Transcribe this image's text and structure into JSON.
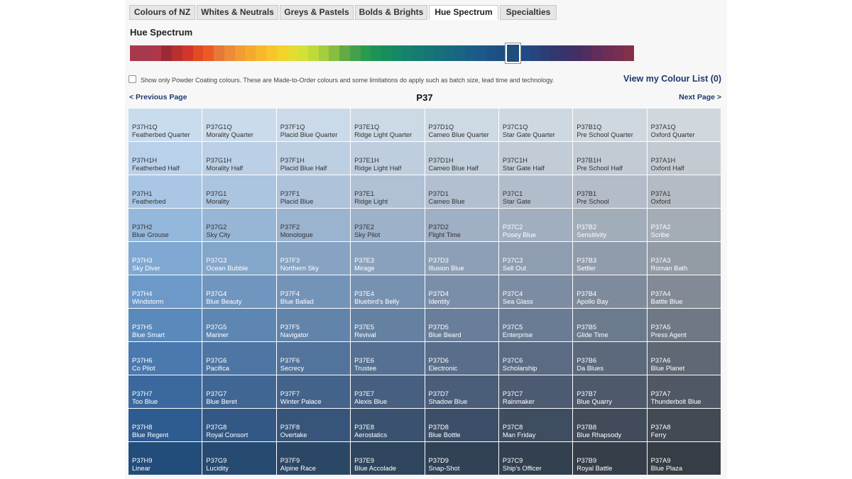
{
  "tabs": [
    {
      "label": "Colours of NZ",
      "active": false
    },
    {
      "label": "Whites & Neutrals",
      "active": false
    },
    {
      "label": "Greys & Pastels",
      "active": false
    },
    {
      "label": "Bolds & Brights",
      "active": false
    },
    {
      "label": "Hue Spectrum",
      "active": true
    },
    {
      "label": "Specialties",
      "active": false
    }
  ],
  "heading": "Hue Spectrum",
  "spectrum": {
    "selected_index": 36,
    "swatches": [
      "#a8384e",
      "#a63a4c",
      "#b0364a",
      "#9c2a34",
      "#b8302e",
      "#d2362a",
      "#e44a22",
      "#ec5a24",
      "#e87838",
      "#ee8a38",
      "#f29c32",
      "#f5aa2e",
      "#f7b82c",
      "#f6c62a",
      "#f0d42c",
      "#e6dc30",
      "#d4e036",
      "#c0da3a",
      "#a4cc3e",
      "#86be42",
      "#62aa46",
      "#44a04a",
      "#2a9a50",
      "#1c9456",
      "#188e5e",
      "#168866",
      "#16826c",
      "#167c72",
      "#167676",
      "#16707c",
      "#186a80",
      "#1a6484",
      "#1a5e88",
      "#1c5888",
      "#1c5286",
      "#1c4e82",
      "#1e4e7c",
      "#204a88",
      "#26447e",
      "#2c3e76",
      "#32386e",
      "#3a326a",
      "#442e66",
      "#522e60",
      "#602e5a",
      "#6c2e54",
      "#782e4e",
      "#843048"
    ]
  },
  "filter": {
    "checked": false,
    "label": "Show only Powder Coating colours. These are Made-to-Order colours and some limitations do apply such as batch size, lead time and technology."
  },
  "colour_list_link": "View my Colour List (0)",
  "pager": {
    "prev": "< Previous Page",
    "page": "P37",
    "next": "Next Page >"
  },
  "grid": {
    "rows": [
      [
        {
          "code": "P37H1Q",
          "name": "Featherbed Quarter",
          "bg": "#c9dcee",
          "fg": "#333333"
        },
        {
          "code": "P37G1Q",
          "name": "Morality Quarter",
          "bg": "#cadbeb",
          "fg": "#333333"
        },
        {
          "code": "P37F1Q",
          "name": "Placid Blue Quarter",
          "bg": "#cbdae8",
          "fg": "#333333"
        },
        {
          "code": "P37E1Q",
          "name": "Ridge Light Quarter",
          "bg": "#ccdae6",
          "fg": "#333333"
        },
        {
          "code": "P37D1Q",
          "name": "Cameo Blue Quarter",
          "bg": "#cdd9e3",
          "fg": "#333333"
        },
        {
          "code": "P37C1Q",
          "name": "Star Gate Quarter",
          "bg": "#ced8e1",
          "fg": "#333333"
        },
        {
          "code": "P37B1Q",
          "name": "Pre School Quarter",
          "bg": "#cfd8df",
          "fg": "#333333"
        },
        {
          "code": "P37A1Q",
          "name": "Oxford Quarter",
          "bg": "#d0d7dd",
          "fg": "#333333"
        }
      ],
      [
        {
          "code": "P37H1H",
          "name": "Featherbed Half",
          "bg": "#b9d1ea",
          "fg": "#333333"
        },
        {
          "code": "P37G1H",
          "name": "Morality Half",
          "bg": "#bbd0e6",
          "fg": "#333333"
        },
        {
          "code": "P37F1H",
          "name": "Placid Blue Half",
          "bg": "#bdcfe2",
          "fg": "#333333"
        },
        {
          "code": "P37E1H",
          "name": "Ridge Light Half",
          "bg": "#bfcedf",
          "fg": "#333333"
        },
        {
          "code": "P37D1H",
          "name": "Cameo Blue Half",
          "bg": "#c0cddb",
          "fg": "#333333"
        },
        {
          "code": "P37C1H",
          "name": "Star Gate Half",
          "bg": "#c1ccd7",
          "fg": "#333333"
        },
        {
          "code": "P37B1H",
          "name": "Pre School Half",
          "bg": "#c2cbd4",
          "fg": "#333333"
        },
        {
          "code": "P37A1H",
          "name": "Oxford Half",
          "bg": "#c4cad1",
          "fg": "#333333"
        }
      ],
      [
        {
          "code": "P37H1",
          "name": "Featherbed",
          "bg": "#a9c6e4",
          "fg": "#333333"
        },
        {
          "code": "P37G1",
          "name": "Morality",
          "bg": "#abc4df",
          "fg": "#333333"
        },
        {
          "code": "P37F1",
          "name": "Placid Blue",
          "bg": "#aec2da",
          "fg": "#333333"
        },
        {
          "code": "P37E1",
          "name": "Ridge Light",
          "bg": "#b0c0d5",
          "fg": "#333333"
        },
        {
          "code": "P37D1",
          "name": "Cameo Blue",
          "bg": "#b1bfd1",
          "fg": "#333333"
        },
        {
          "code": "P37C1",
          "name": "Star Gate",
          "bg": "#b2bdcc",
          "fg": "#333333"
        },
        {
          "code": "P37B1",
          "name": "Pre School",
          "bg": "#b3bcc8",
          "fg": "#333333"
        },
        {
          "code": "P37A1",
          "name": "Oxford",
          "bg": "#b5bbc3",
          "fg": "#333333"
        }
      ],
      [
        {
          "code": "P37H2",
          "name": "Blue Grouse",
          "bg": "#94b8dc",
          "fg": "#333333"
        },
        {
          "code": "P37G2",
          "name": "Sky City",
          "bg": "#97b6d6",
          "fg": "#333333"
        },
        {
          "code": "P37F2",
          "name": "Monologue",
          "bg": "#9ab3cf",
          "fg": "#333333"
        },
        {
          "code": "P37E2",
          "name": "Sky Pilot",
          "bg": "#9db1c9",
          "fg": "#333333"
        },
        {
          "code": "P37D2",
          "name": "Flight Time",
          "bg": "#9fafc4",
          "fg": "#333333"
        },
        {
          "code": "P37C2",
          "name": "Posey Blue",
          "bg": "#a0aebf",
          "fg": "#ffffff"
        },
        {
          "code": "P37B2",
          "name": "Sensitivity",
          "bg": "#a2adba",
          "fg": "#ffffff"
        },
        {
          "code": "P37A2",
          "name": "Scribe",
          "bg": "#a4acb5",
          "fg": "#ffffff"
        }
      ],
      [
        {
          "code": "P37H3",
          "name": "Sky Diver",
          "bg": "#7fa8d2",
          "fg": "#ffffff"
        },
        {
          "code": "P37G3",
          "name": "Ocean Bubble",
          "bg": "#83a6cb",
          "fg": "#ffffff"
        },
        {
          "code": "P37F3",
          "name": "Northern Sky",
          "bg": "#87a3c3",
          "fg": "#ffffff"
        },
        {
          "code": "P37E3",
          "name": "Mirage",
          "bg": "#8aa1bd",
          "fg": "#ffffff"
        },
        {
          "code": "P37D3",
          "name": "Illusion Blue",
          "bg": "#8c9fb6",
          "fg": "#ffffff"
        },
        {
          "code": "P37C3",
          "name": "Sell Out",
          "bg": "#8e9db1",
          "fg": "#ffffff"
        },
        {
          "code": "P37B3",
          "name": "Settler",
          "bg": "#909cab",
          "fg": "#ffffff"
        },
        {
          "code": "P37A3",
          "name": "Roman Bath",
          "bg": "#939ba5",
          "fg": "#ffffff"
        }
      ],
      [
        {
          "code": "P37H4",
          "name": "Windstorm",
          "bg": "#6c99c8",
          "fg": "#ffffff"
        },
        {
          "code": "P37G4",
          "name": "Blue Beauty",
          "bg": "#7096c0",
          "fg": "#ffffff"
        },
        {
          "code": "P37F4",
          "name": "Blue Ballad",
          "bg": "#7493b8",
          "fg": "#ffffff"
        },
        {
          "code": "P37E4",
          "name": "Bluebird's Belly",
          "bg": "#7791b0",
          "fg": "#ffffff"
        },
        {
          "code": "P37D4",
          "name": "Identity",
          "bg": "#7a8ea9",
          "fg": "#ffffff"
        },
        {
          "code": "P37C4",
          "name": "Sea Glass",
          "bg": "#7c8ca3",
          "fg": "#ffffff"
        },
        {
          "code": "P37B4",
          "name": "Apollo Bay",
          "bg": "#7e8b9d",
          "fg": "#ffffff"
        },
        {
          "code": "P37A4",
          "name": "Battle Blue",
          "bg": "#818a95",
          "fg": "#ffffff"
        }
      ],
      [
        {
          "code": "P37H5",
          "name": "Blue Smart",
          "bg": "#5a89bc",
          "fg": "#ffffff"
        },
        {
          "code": "P37G5",
          "name": "Mariner",
          "bg": "#5e86b3",
          "fg": "#ffffff"
        },
        {
          "code": "P37F5",
          "name": "Navigator",
          "bg": "#6283aa",
          "fg": "#ffffff"
        },
        {
          "code": "P37E5",
          "name": "Revival",
          "bg": "#6581a2",
          "fg": "#ffffff"
        },
        {
          "code": "P37D5",
          "name": "Blue Beard",
          "bg": "#687e9a",
          "fg": "#ffffff"
        },
        {
          "code": "P37C5",
          "name": "Enterprise",
          "bg": "#6a7c93",
          "fg": "#ffffff"
        },
        {
          "code": "P37B5",
          "name": "Glide Time",
          "bg": "#6c7a8d",
          "fg": "#ffffff"
        },
        {
          "code": "P37A5",
          "name": "Press Agent",
          "bg": "#6f7985",
          "fg": "#ffffff"
        }
      ],
      [
        {
          "code": "P37H6",
          "name": "Co Pilot",
          "bg": "#4979ae",
          "fg": "#ffffff"
        },
        {
          "code": "P37G6",
          "name": "Pacifica",
          "bg": "#4e76a4",
          "fg": "#ffffff"
        },
        {
          "code": "P37F6",
          "name": "Secrecy",
          "bg": "#52739b",
          "fg": "#ffffff"
        },
        {
          "code": "P37E6",
          "name": "Trustee",
          "bg": "#557092",
          "fg": "#ffffff"
        },
        {
          "code": "P37D6",
          "name": "Electronic",
          "bg": "#586e8a",
          "fg": "#ffffff"
        },
        {
          "code": "P37C6",
          "name": "Scholarship",
          "bg": "#5a6b83",
          "fg": "#ffffff"
        },
        {
          "code": "P37B6",
          "name": "Da Blues",
          "bg": "#5c697c",
          "fg": "#ffffff"
        },
        {
          "code": "P37A6",
          "name": "Blue Planet",
          "bg": "#5f6875",
          "fg": "#ffffff"
        }
      ],
      [
        {
          "code": "P37H7",
          "name": "Too Blue",
          "bg": "#3b699e",
          "fg": "#ffffff"
        },
        {
          "code": "P37G7",
          "name": "Blue Beret",
          "bg": "#406694",
          "fg": "#ffffff"
        },
        {
          "code": "P37F7",
          "name": "Winter Palace",
          "bg": "#44638a",
          "fg": "#ffffff"
        },
        {
          "code": "P37E7",
          "name": "Alexis Blue",
          "bg": "#476081",
          "fg": "#ffffff"
        },
        {
          "code": "P37D7",
          "name": "Shadow Blue",
          "bg": "#4a5d79",
          "fg": "#ffffff"
        },
        {
          "code": "P37C7",
          "name": "Rainmaker",
          "bg": "#4c5b72",
          "fg": "#ffffff"
        },
        {
          "code": "P37B7",
          "name": "Blue Quarry",
          "bg": "#4e596b",
          "fg": "#ffffff"
        },
        {
          "code": "P37A7",
          "name": "Thunderbolt Blue",
          "bg": "#515865",
          "fg": "#ffffff"
        }
      ],
      [
        {
          "code": "P37H8",
          "name": "Blue Regent",
          "bg": "#2e5b90",
          "fg": "#ffffff"
        },
        {
          "code": "P37G8",
          "name": "Royal Consort",
          "bg": "#335885",
          "fg": "#ffffff"
        },
        {
          "code": "P37F8",
          "name": "Overtake",
          "bg": "#37557a",
          "fg": "#ffffff"
        },
        {
          "code": "P37E8",
          "name": "Aerostatics",
          "bg": "#3a5270",
          "fg": "#ffffff"
        },
        {
          "code": "P37D8",
          "name": "Blue Bottle",
          "bg": "#3d4f68",
          "fg": "#ffffff"
        },
        {
          "code": "P37C8",
          "name": "Man Friday",
          "bg": "#3f4d61",
          "fg": "#ffffff"
        },
        {
          "code": "P37B8",
          "name": "Blue Rhapsody",
          "bg": "#414b5a",
          "fg": "#ffffff"
        },
        {
          "code": "P37A8",
          "name": "Ferry",
          "bg": "#434a54",
          "fg": "#ffffff"
        }
      ],
      [
        {
          "code": "P37H9",
          "name": "Linear",
          "bg": "#224c7a",
          "fg": "#ffffff"
        },
        {
          "code": "P37G9",
          "name": "Lucidity",
          "bg": "#274a70",
          "fg": "#ffffff"
        },
        {
          "code": "P37F9",
          "name": "Alpine Race",
          "bg": "#2b4766",
          "fg": "#ffffff"
        },
        {
          "code": "P37E9",
          "name": "Blue Accolade",
          "bg": "#2e455d",
          "fg": "#ffffff"
        },
        {
          "code": "P37D9",
          "name": "Snap-Shot",
          "bg": "#314256",
          "fg": "#ffffff"
        },
        {
          "code": "P37C9",
          "name": "Ship's Officer",
          "bg": "#33404f",
          "fg": "#ffffff"
        },
        {
          "code": "P37B9",
          "name": "Royal Battle",
          "bg": "#353e49",
          "fg": "#ffffff"
        },
        {
          "code": "P37A9",
          "name": "Blue Plaza",
          "bg": "#373d44",
          "fg": "#ffffff"
        }
      ]
    ]
  }
}
